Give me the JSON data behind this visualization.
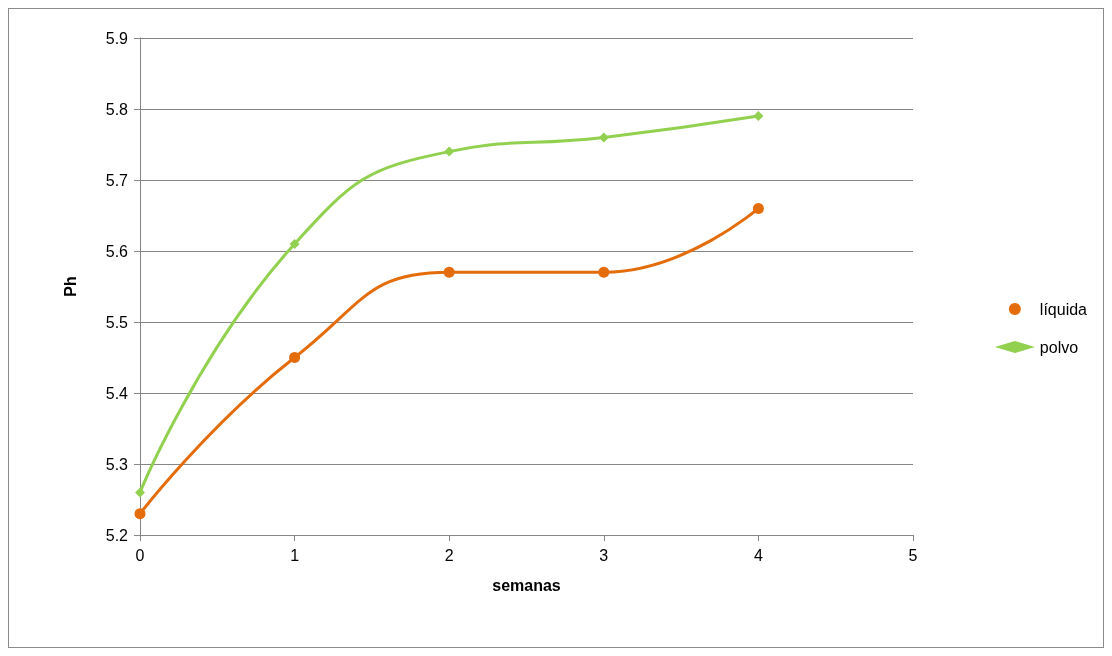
{
  "chart_data": {
    "type": "line",
    "xlabel": "semanas",
    "ylabel": "Ph",
    "x": [
      0,
      1,
      2,
      3,
      4
    ],
    "series": [
      {
        "name": "líquida",
        "color": "#e46c0a",
        "marker": "circle",
        "values": [
          5.23,
          5.45,
          5.57,
          5.57,
          5.66
        ]
      },
      {
        "name": "polvo",
        "color": "#92d050",
        "marker": "diamond",
        "values": [
          5.26,
          5.61,
          5.74,
          5.76,
          5.79
        ]
      }
    ],
    "xlim": [
      0,
      5
    ],
    "xticks": [
      0,
      1,
      2,
      3,
      4,
      5
    ],
    "ylim": [
      5.2,
      5.9
    ],
    "yticks": [
      5.2,
      5.3,
      5.4,
      5.5,
      5.6,
      5.7,
      5.8,
      5.9
    ],
    "grid": "y",
    "legend": "right",
    "line_style": "solid"
  }
}
